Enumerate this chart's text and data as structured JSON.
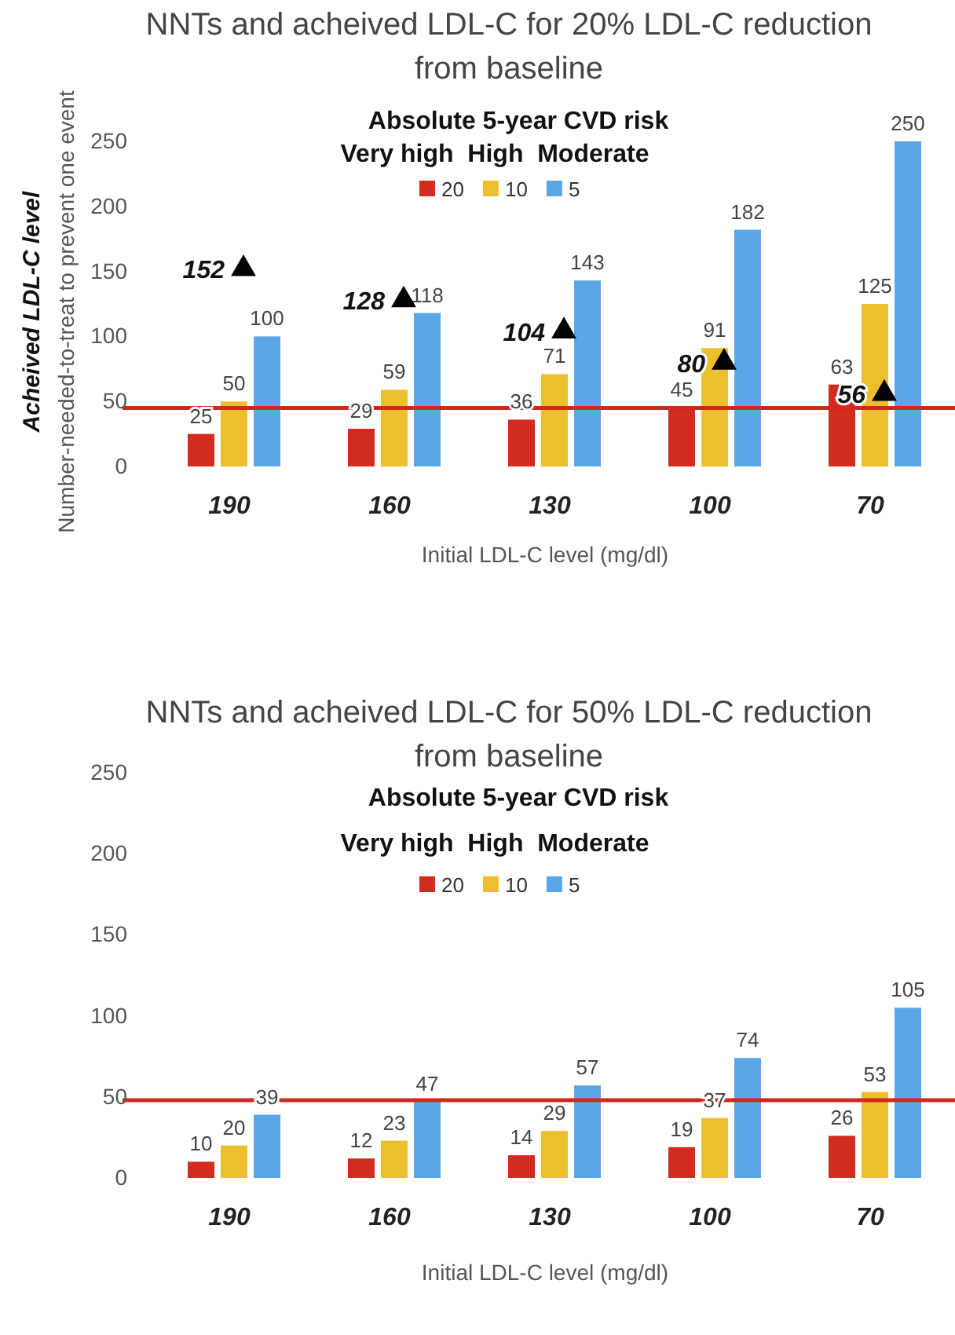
{
  "chart_data": [
    {
      "type": "bar",
      "title": "NNTs and acheived LDL-C for 20% LDL-C reduction from baseline",
      "xlabel": "Initial LDL-C level (mg/dl)",
      "ylabel": "Number-needed-to-treat to prevent one event",
      "legend_title": "Absolute 5-year CVD risk",
      "annotations": [
        "Acheived LDL-C level",
        "Very high  High  Moderate"
      ],
      "categories": [
        "190",
        "160",
        "130",
        "100",
        "70"
      ],
      "series": [
        {
          "name": "20",
          "color": "#d22b1f",
          "values": [
            25,
            29,
            36,
            45,
            63
          ]
        },
        {
          "name": "10",
          "color": "#ecc02c",
          "values": [
            50,
            59,
            71,
            91,
            125
          ]
        },
        {
          "name": "5",
          "color": "#5aa6e6",
          "values": [
            100,
            118,
            143,
            182,
            250
          ]
        },
        {
          "type": "scatter",
          "color": "#000000",
          "marker": "triangle",
          "x": [
            "190",
            "160",
            "130",
            "100",
            "70"
          ],
          "values": [
            152,
            128,
            104,
            80,
            56
          ]
        }
      ],
      "ylim": [
        0,
        250
      ],
      "yticks": [
        0,
        50,
        100,
        150,
        200,
        250
      ],
      "grid": false,
      "legend": "top",
      "data_labels": true,
      "ref_lines": [
        {
          "axis": "y",
          "value": 45,
          "color": "#d0281c"
        }
      ]
    },
    {
      "type": "bar",
      "title": "NNTs and acheived LDL-C for 50% LDL-C reduction from baseline",
      "xlabel": "Initial LDL-C level (mg/dl)",
      "legend_title": "Absolute 5-year CVD risk",
      "annotations": [
        "Very high  High  Moderate"
      ],
      "categories": [
        "190",
        "160",
        "130",
        "100",
        "70"
      ],
      "series": [
        {
          "name": "20",
          "color": "#d22b1f",
          "values": [
            10,
            12,
            14,
            19,
            26
          ]
        },
        {
          "name": "10",
          "color": "#ecc02c",
          "values": [
            20,
            23,
            29,
            37,
            53
          ]
        },
        {
          "name": "5",
          "color": "#5aa6e6",
          "values": [
            39,
            47,
            57,
            74,
            105
          ]
        }
      ],
      "ylim": [
        0,
        250
      ],
      "yticks": [
        0,
        50,
        100,
        150,
        200,
        250
      ],
      "grid": false,
      "legend": "top",
      "data_labels": true,
      "ref_lines": [
        {
          "axis": "y",
          "value": 48,
          "color": "#d0281c"
        }
      ]
    }
  ]
}
